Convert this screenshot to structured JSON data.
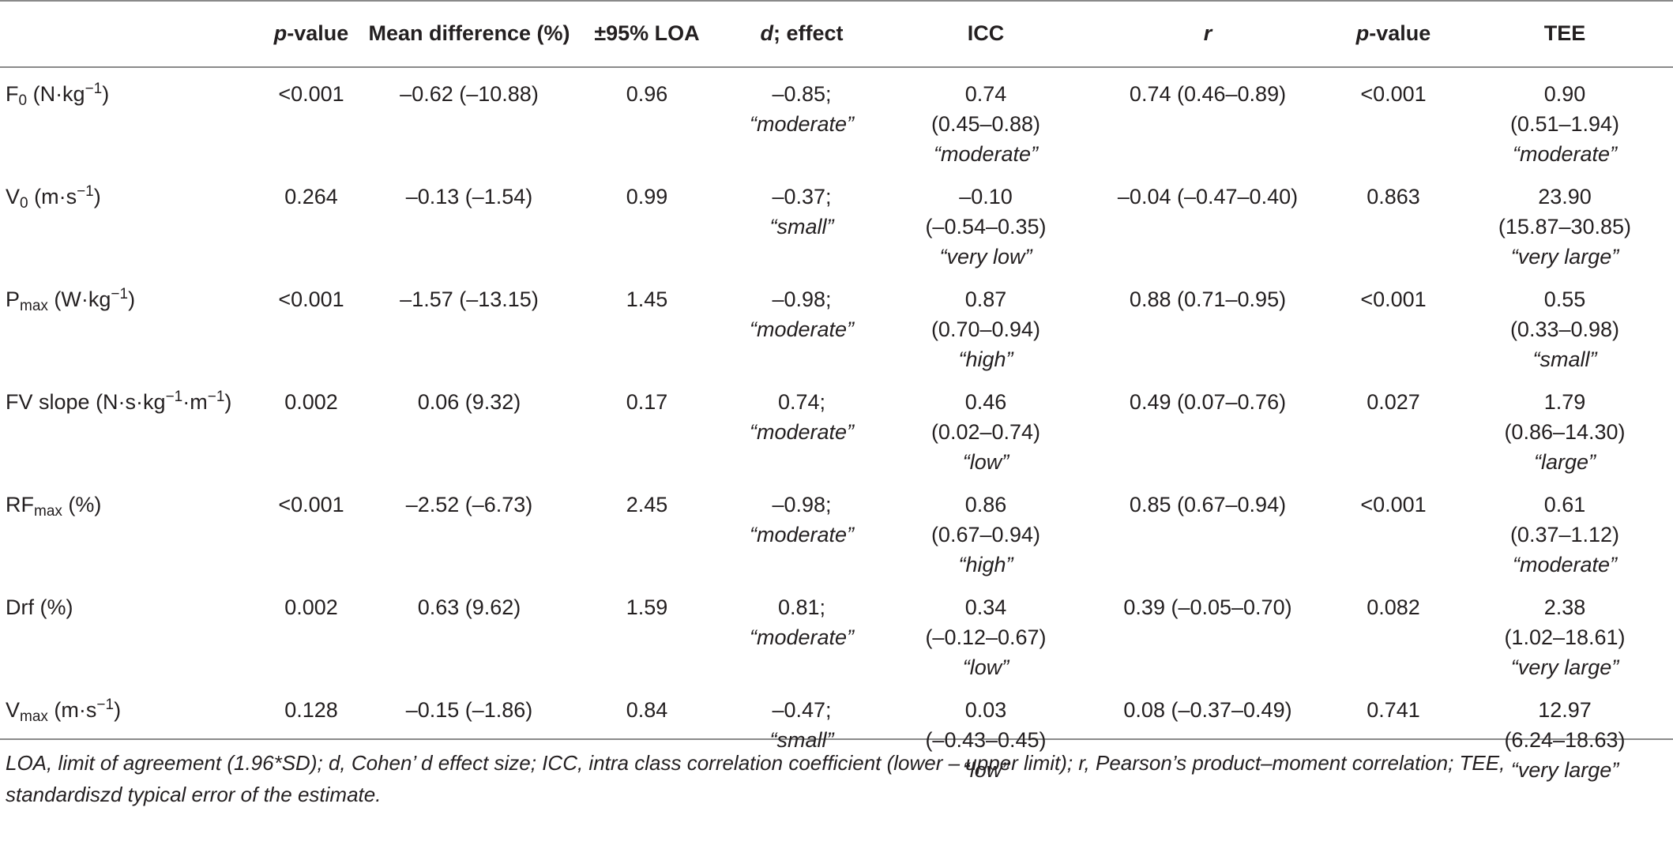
{
  "table": {
    "headers": [
      {
        "id": "param",
        "label": ""
      },
      {
        "id": "p1",
        "italic_part": "p",
        "rest": "-value"
      },
      {
        "id": "meandiff",
        "label": "Mean difference (%)"
      },
      {
        "id": "loa",
        "label": "±95% LOA"
      },
      {
        "id": "d",
        "italic_part": "d",
        "rest": "; effect"
      },
      {
        "id": "icc",
        "label": "ICC"
      },
      {
        "id": "r",
        "italic_part": "r",
        "rest": ""
      },
      {
        "id": "p2",
        "italic_part": "p",
        "rest": "-value"
      },
      {
        "id": "tee",
        "label": "TEE"
      }
    ],
    "rows": [
      {
        "param": {
          "base": "F",
          "sub": "0",
          "unit_pre": " (N·kg",
          "sup": "−1",
          "unit_post": ")"
        },
        "p1": "<0.001",
        "meandiff": "–0.62 (–10.88)",
        "loa": "0.96",
        "d_value": "–0.85;",
        "d_effect": "“moderate”",
        "icc_value": "0.74",
        "icc_ci": "(0.45–0.88)",
        "icc_effect": "“moderate”",
        "r": "0.74 (0.46–0.89)",
        "p2": "<0.001",
        "tee_value": "0.90",
        "tee_ci": "(0.51–1.94)",
        "tee_effect": "“moderate”"
      },
      {
        "param": {
          "base": "V",
          "sub": "0",
          "unit_pre": " (m·s",
          "sup": "−1",
          "unit_post": ")"
        },
        "p1": "0.264",
        "meandiff": "–0.13 (–1.54)",
        "loa": "0.99",
        "d_value": "–0.37;",
        "d_effect": "“small”",
        "icc_value": "–0.10",
        "icc_ci": "(–0.54–0.35)",
        "icc_effect": "“very low”",
        "r": "–0.04 (–0.47–0.40)",
        "p2": "0.863",
        "tee_value": "23.90",
        "tee_ci": "(15.87–30.85)",
        "tee_effect": "“very large”"
      },
      {
        "param": {
          "base": "P",
          "sub": "max",
          "unit_pre": " (W·kg",
          "sup": "−1",
          "unit_post": ")"
        },
        "p1": "<0.001",
        "meandiff": "–1.57 (–13.15)",
        "loa": "1.45",
        "d_value": "–0.98;",
        "d_effect": "“moderate”",
        "icc_value": "0.87",
        "icc_ci": "(0.70–0.94)",
        "icc_effect": "“high”",
        "r": "0.88 (0.71–0.95)",
        "p2": "<0.001",
        "tee_value": "0.55",
        "tee_ci": "(0.33–0.98)",
        "tee_effect": "“small”"
      },
      {
        "param": {
          "base": "FV slope",
          "sub": "",
          "unit_pre": " (N·s·kg",
          "sup": "−1",
          "unit_mid": "·m",
          "sup2": "−1",
          "unit_post": ")"
        },
        "p1": "0.002",
        "meandiff": "0.06 (9.32)",
        "loa": "0.17",
        "d_value": "0.74;",
        "d_effect": "“moderate”",
        "icc_value": "0.46",
        "icc_ci": "(0.02–0.74)",
        "icc_effect": "“low”",
        "r": "0.49 (0.07–0.76)",
        "p2": "0.027",
        "tee_value": "1.79",
        "tee_ci": "(0.86–14.30)",
        "tee_effect": "“large”"
      },
      {
        "param": {
          "base": "RF",
          "sub": "max",
          "unit_pre": " (%)",
          "sup": "",
          "unit_post": ""
        },
        "p1": "<0.001",
        "meandiff": "–2.52 (–6.73)",
        "loa": "2.45",
        "d_value": "–0.98;",
        "d_effect": "“moderate”",
        "icc_value": "0.86",
        "icc_ci": "(0.67–0.94)",
        "icc_effect": "“high”",
        "r": "0.85 (0.67–0.94)",
        "p2": "<0.001",
        "tee_value": "0.61",
        "tee_ci": "(0.37–1.12)",
        "tee_effect": "“moderate”"
      },
      {
        "param": {
          "base": "Drf",
          "sub": "",
          "unit_pre": " (%)",
          "sup": "",
          "unit_post": ""
        },
        "p1": "0.002",
        "meandiff": "0.63 (9.62)",
        "loa": "1.59",
        "d_value": "0.81;",
        "d_effect": "“moderate”",
        "icc_value": "0.34",
        "icc_ci": "(–0.12–0.67)",
        "icc_effect": "“low”",
        "r": "0.39 (–0.05–0.70)",
        "p2": "0.082",
        "tee_value": "2.38",
        "tee_ci": "(1.02–18.61)",
        "tee_effect": "“very large”"
      },
      {
        "param": {
          "base": "V",
          "sub": "max",
          "unit_pre": " (m·s",
          "sup": "−1",
          "unit_post": ")"
        },
        "p1": "0.128",
        "meandiff": "–0.15 (–1.86)",
        "loa": "0.84",
        "d_value": "–0.47;",
        "d_effect": "“small”",
        "icc_value": "0.03",
        "icc_ci": "(–0.43–0.45)",
        "icc_effect": "“low”",
        "r": "0.08 (–0.37–0.49)",
        "p2": "0.741",
        "tee_value": "12.97",
        "tee_ci": "(6.24–18.63)",
        "tee_effect": "“very large”"
      }
    ]
  },
  "footnote": {
    "line1": "LOA, limit of agreement (1.96*SD); d, Cohen’ d effect size; ICC, intra class correlation coefficient (lower – upper limit); r, Pearson’s product–moment correlation; TEE,",
    "line2": "standardiszd typical error of the estimate."
  }
}
